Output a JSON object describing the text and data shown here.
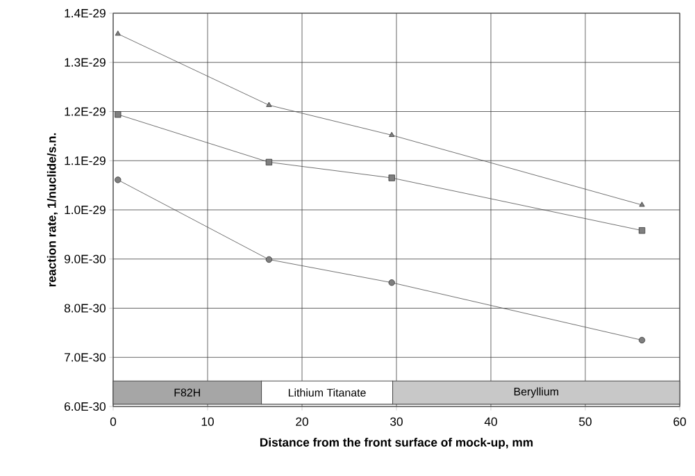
{
  "chart_data": {
    "type": "line",
    "xlabel": "Distance from the front surface of mock-up, mm",
    "ylabel": "reaction rate, 1/nuclide/s.n.",
    "series": [
      {
        "color": "#7f7f7f",
        "marker": "triangle",
        "x": [
          0.5,
          16.5,
          29.5,
          56.0
        ],
        "values": [
          1.358e-29,
          1.213e-29,
          1.152e-29,
          1.01e-29
        ]
      },
      {
        "color": "#7f7f7f",
        "marker": "square",
        "x": [
          0.5,
          16.5,
          29.5,
          56.0
        ],
        "values": [
          1.194e-29,
          1.097e-29,
          1.065e-29,
          9.58e-30
        ]
      },
      {
        "color": "#7f7f7f",
        "marker": "circle",
        "x": [
          0.5,
          16.5,
          29.5,
          56.0
        ],
        "values": [
          1.061e-29,
          8.99e-30,
          8.52e-30,
          7.35e-30
        ]
      }
    ],
    "xlim": [
      0,
      60
    ],
    "xticks": [
      0,
      10,
      20,
      30,
      40,
      50,
      60
    ],
    "ylim": [
      6e-30,
      1.4e-29
    ],
    "yticks": [
      {
        "value": 6e-30,
        "label": "6.0E-30"
      },
      {
        "value": 7e-30,
        "label": "7.0E-30"
      },
      {
        "value": 8e-30,
        "label": "8.0E-30"
      },
      {
        "value": 9e-30,
        "label": "9.0E-30"
      },
      {
        "value": 1e-29,
        "label": "1.0E-29"
      },
      {
        "value": 1.1e-29,
        "label": "1.1E-29"
      },
      {
        "value": 1.2e-29,
        "label": "1.2E-29"
      },
      {
        "value": 1.3e-29,
        "label": "1.3E-29"
      },
      {
        "value": 1.4e-29,
        "label": "1.4E-29"
      }
    ],
    "bands": [
      {
        "axis": "x",
        "from": 0,
        "to": 15.7,
        "label": "F82H",
        "color": "#a6a6a6"
      },
      {
        "axis": "x",
        "from": 15.7,
        "to": 29.6,
        "label": "Lithium Titanate",
        "color": "#ffffff"
      },
      {
        "axis": "x",
        "from": 29.6,
        "to": 60,
        "label": "Beryllium",
        "color": "#c8c8c8"
      }
    ],
    "grid": true,
    "line_style": "solid"
  }
}
